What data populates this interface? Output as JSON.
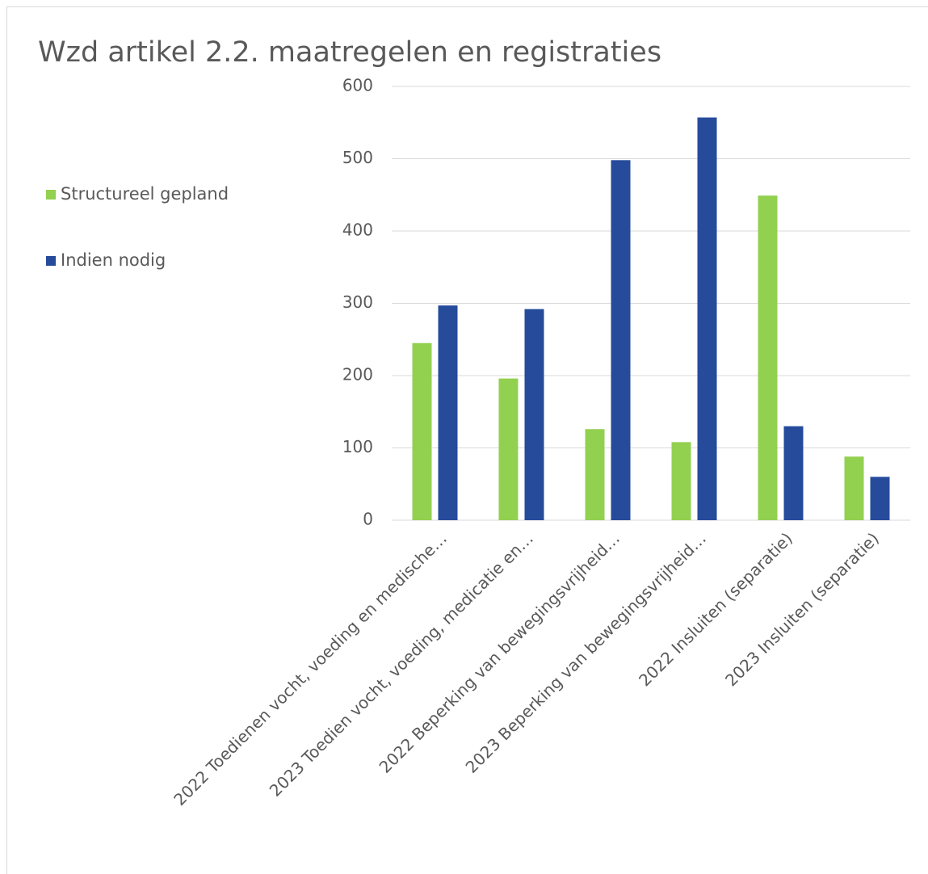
{
  "chart_data": {
    "type": "bar",
    "title": "Wzd artikel 2.2. maatregelen en registraties",
    "categories": [
      "2022 Toedienen vocht, voeding en medische…",
      "2023 Toedien vocht, voeding, medicatie en…",
      "2022 Beperking van bewegingsvrijheid…",
      "2023 Beperking van bewegingsvrijheid…",
      "2022 Insluiten (separatie)",
      "2023 Insluiten (separatie)"
    ],
    "series": [
      {
        "name": "Structureel gepland",
        "color": "#92d050",
        "values": [
          245,
          196,
          126,
          108,
          449,
          88
        ]
      },
      {
        "name": "Indien nodig",
        "color": "#264b9b",
        "values": [
          297,
          292,
          498,
          557,
          130,
          60
        ]
      }
    ],
    "ylim": [
      0,
      600
    ],
    "yticks": [
      0,
      100,
      200,
      300,
      400,
      500,
      600
    ],
    "grid": true,
    "legend": "left"
  }
}
